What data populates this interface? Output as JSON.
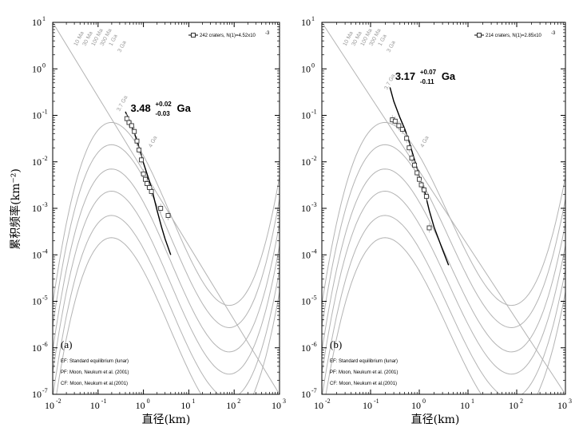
{
  "axis": {
    "xlabel": "直径(km)",
    "ylabel": "累积频率(km⁻²)"
  },
  "colors": {
    "isochron": "#b4b4b4",
    "fit": "#000000",
    "marker": "#333333"
  },
  "panels": [
    {
      "tag": "(a)",
      "legend": "242 craters, N(1)=4.52x10",
      "legend_exp": "-3",
      "age": {
        "value": "3.48",
        "plus": "+0.02",
        "minus": "-0.03",
        "unit": "Ga"
      },
      "notes": [
        "EF: Standard equilibrium (lunar)",
        "PF: Moon, Neukum et al. (2001)",
        "CF: Moon, Neukum et al.(2001)"
      ],
      "iso_labels": [
        "10 Ma",
        "30 Ma",
        "100 Ma",
        "300 Ma",
        "1 Ga",
        "3 Ga"
      ],
      "fit_label": "3.7 Ga",
      "fit_label2": "4 Ga"
    },
    {
      "tag": "(b)",
      "legend": "214 craters, N(1)=2.85x10",
      "legend_exp": "-3",
      "age": {
        "value": "3.17",
        "plus": "+0.07",
        "minus": "-0.11",
        "unit": "Ga"
      },
      "notes": [
        "EF: Standard equilibrium (lunar)",
        "PF: Moon, Neukum et al. (2001)",
        "CF: Moon, Neukum et al.(2001)"
      ],
      "iso_labels": [
        "10 Ma",
        "30 Ma",
        "100 Ma",
        "300 Ma",
        "1 Ga",
        "3 Ga"
      ],
      "fit_label": "3.7 Ga",
      "fit_label2": "4 Ga"
    }
  ],
  "chart_data": [
    {
      "type": "scatter",
      "x_scale": "log",
      "y_scale": "log",
      "xlim": [
        0.01,
        1000
      ],
      "ylim": [
        1e-07,
        10
      ],
      "xlabel": "直径(km)",
      "ylabel": "累积频率(km⁻²)",
      "x_ticks": [
        "10",
        "10",
        "10",
        "10",
        "10",
        "10"
      ],
      "x_tick_exp": [
        "-2",
        "-1",
        "0",
        "1",
        "2",
        "3"
      ],
      "y_ticks": [
        "10",
        "10",
        "10",
        "10",
        "10",
        "10",
        "10",
        "10",
        "10"
      ],
      "y_tick_exp": [
        "-7",
        "-6",
        "-5",
        "-4",
        "-3",
        "-2",
        "-1",
        "0",
        "1"
      ],
      "series": [
        {
          "name": "242 craters",
          "x": [
            0.43,
            0.48,
            0.55,
            0.63,
            0.72,
            0.8,
            0.9,
            1.0,
            1.1,
            1.2,
            1.35,
            1.5,
            2.4,
            3.5
          ],
          "y": [
            0.085,
            0.07,
            0.06,
            0.045,
            0.028,
            0.018,
            0.011,
            0.0055,
            0.0042,
            0.0034,
            0.0028,
            0.0023,
            0.001,
            0.0007
          ]
        }
      ],
      "fit_curve": {
        "x": [
          0.4,
          0.5,
          0.6,
          0.7,
          0.8,
          1.0,
          1.2,
          1.5,
          2.0,
          2.5,
          3.0,
          4.0
        ],
        "y": [
          0.12,
          0.075,
          0.048,
          0.031,
          0.021,
          0.0095,
          0.0055,
          0.0028,
          0.0009,
          0.0004,
          0.00022,
          0.0001
        ]
      },
      "isochron_N1": [
        4.52e-05,
        0.000136,
        0.000452,
        0.00136,
        0.00452,
        0.0136
      ],
      "equilibrium": {
        "x": [
          0.01,
          1000
        ],
        "y": [
          10,
          1e-07
        ]
      },
      "legend_position": "top-right"
    },
    {
      "type": "scatter",
      "x_scale": "log",
      "y_scale": "log",
      "xlim": [
        0.01,
        1000
      ],
      "ylim": [
        1e-07,
        10
      ],
      "xlabel": "直径(km)",
      "ylabel": "",
      "x_ticks": [
        "10",
        "10",
        "10",
        "10",
        "10",
        "10"
      ],
      "x_tick_exp": [
        "-2",
        "-1",
        "0",
        "1",
        "2",
        "3"
      ],
      "y_ticks": [
        "10",
        "10",
        "10",
        "10",
        "10",
        "10",
        "10",
        "10",
        "10"
      ],
      "y_tick_exp": [
        "-7",
        "-6",
        "-5",
        "-4",
        "-3",
        "-2",
        "-1",
        "0",
        "1"
      ],
      "series": [
        {
          "name": "214 craters",
          "x": [
            0.28,
            0.32,
            0.38,
            0.45,
            0.55,
            0.62,
            0.7,
            0.8,
            0.9,
            1.0,
            1.1,
            1.25,
            1.4,
            1.6
          ],
          "y": [
            0.08,
            0.075,
            0.06,
            0.05,
            0.032,
            0.02,
            0.012,
            0.0085,
            0.0058,
            0.0042,
            0.0032,
            0.0025,
            0.0018,
            0.00038
          ]
        }
      ],
      "fit_curve": {
        "x": [
          0.25,
          0.3,
          0.4,
          0.5,
          0.6,
          0.8,
          1.0,
          1.3,
          1.6,
          2.0,
          3.0,
          4.0
        ],
        "y": [
          0.4,
          0.2,
          0.09,
          0.052,
          0.03,
          0.011,
          0.005,
          0.0022,
          0.0009,
          0.0004,
          0.00013,
          6e-05
        ]
      },
      "isochron_N1": [
        4.52e-05,
        0.000136,
        0.000452,
        0.00136,
        0.00452,
        0.0136
      ],
      "equilibrium": {
        "x": [
          0.01,
          1000
        ],
        "y": [
          10,
          1e-07
        ]
      },
      "legend_position": "top-right"
    }
  ]
}
